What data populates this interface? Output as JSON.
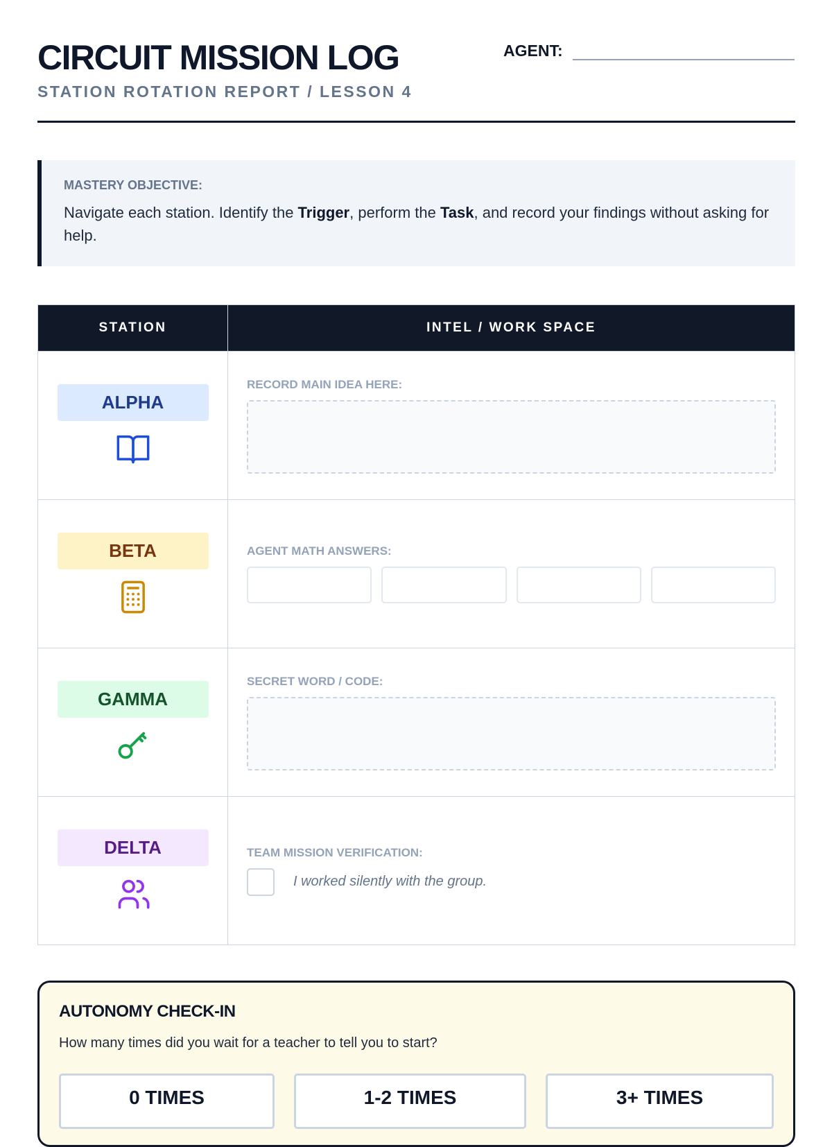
{
  "header": {
    "title": "CIRCUIT MISSION LOG",
    "subtitle": "STATION ROTATION REPORT / LESSON 4",
    "agent_label": "AGENT:"
  },
  "objective": {
    "label": "MASTERY OBJECTIVE:",
    "text_1": "Navigate each station. Identify the ",
    "bold_1": "Trigger",
    "text_2": ", perform the ",
    "bold_2": "Task",
    "text_3": ", and record your findings without asking for help."
  },
  "table": {
    "headers": [
      "STATION",
      "INTEL / WORK SPACE"
    ],
    "rows": [
      {
        "station": "ALPHA",
        "icon": "book-icon",
        "color": "#1d4ed8",
        "bg": "#dbeafe",
        "label": "RECORD MAIN IDEA HERE:"
      },
      {
        "station": "BETA",
        "icon": "calculator-icon",
        "color": "#92400e",
        "bg": "#fef3c7",
        "label": "AGENT MATH ANSWERS:"
      },
      {
        "station": "GAMMA",
        "icon": "key-icon",
        "color": "#166534",
        "bg": "#dcfce7",
        "label": "SECRET WORD / CODE:"
      },
      {
        "station": "DELTA",
        "icon": "users-icon",
        "color": "#6b21a8",
        "bg": "#f3e8ff",
        "label": "TEAM MISSION VERIFICATION:",
        "check_text": "I worked silently with the group."
      }
    ]
  },
  "autonomy": {
    "title": "AUTONOMY CHECK-IN",
    "question": "How many times did you wait for a teacher to tell you to start?",
    "options": [
      "0 TIMES",
      "1-2 TIMES",
      "3+ TIMES"
    ]
  }
}
